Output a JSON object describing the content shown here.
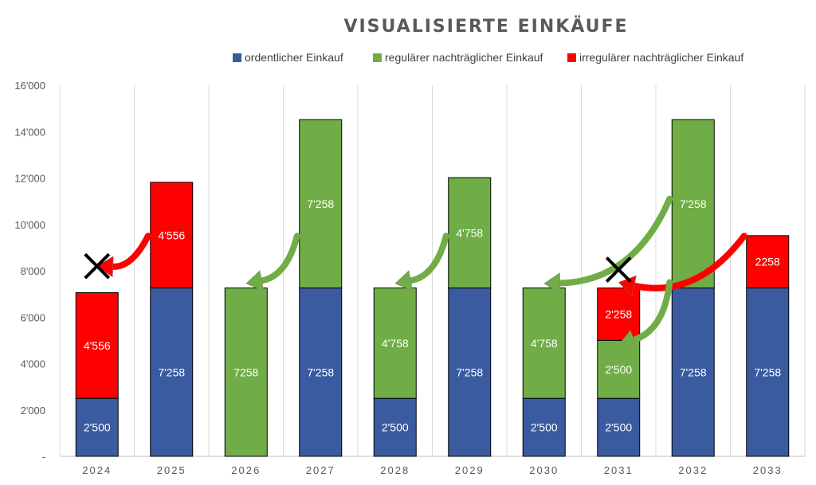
{
  "chart_data": {
    "type": "bar",
    "stacked": true,
    "title": "VISUALISIERTE EINKÄUFE",
    "categories": [
      "2024",
      "2025",
      "2026",
      "2027",
      "2028",
      "2029",
      "2030",
      "2031",
      "2032",
      "2033"
    ],
    "ylim": [
      0,
      16000
    ],
    "y_ticks": [
      "-",
      "2'000",
      "4'000",
      "6'000",
      "8'000",
      "10'000",
      "12'000",
      "14'000",
      "16'000"
    ],
    "grid": "vertical separators",
    "legend_position": "top",
    "series": [
      {
        "name": "ordentlicher Einkauf",
        "color": "#3A5BA0",
        "values": [
          2500,
          7258,
          0,
          7258,
          2500,
          7258,
          2500,
          2500,
          7258,
          7258
        ],
        "labels": [
          "2'500",
          "7'258",
          "",
          "7'258",
          "2'500",
          "7'258",
          "2'500",
          "2'500",
          "7'258",
          "7'258"
        ]
      },
      {
        "name": "regulärer nachträglicher Einkauf",
        "color": "#70AD47",
        "values": [
          0,
          0,
          7258,
          7258,
          4758,
          4758,
          4758,
          2500,
          7258,
          0
        ],
        "labels": [
          "",
          "",
          "7258",
          "7'258",
          "4'758",
          "4'758",
          "4'758",
          "2'500",
          "7'258",
          ""
        ]
      },
      {
        "name": "irregulärer nachträglicher Einkauf",
        "color": "#FF0000",
        "values": [
          4556,
          4556,
          0,
          0,
          0,
          0,
          0,
          2258,
          0,
          2258
        ],
        "labels": [
          "4'556",
          "4'556",
          "",
          "",
          "",
          "",
          "",
          "2'258",
          "",
          "2258"
        ]
      }
    ],
    "annotations": [
      {
        "type": "curved-arrow",
        "color": "#FF0000",
        "from_category": "2025",
        "to_category": "2024",
        "from_value": 9500,
        "to_value": 8200
      },
      {
        "type": "x-mark",
        "category": "2024",
        "value": 8200
      },
      {
        "type": "curved-arrow",
        "color": "#70AD47",
        "from_category": "2027",
        "to_category": "2026",
        "from_value": 9500,
        "to_value": 7450
      },
      {
        "type": "curved-arrow",
        "color": "#70AD47",
        "from_category": "2029",
        "to_category": "2028",
        "from_value": 9500,
        "to_value": 7450
      },
      {
        "type": "curved-arrow",
        "color": "#70AD47",
        "from_category": "2032",
        "to_category": "2030",
        "from_value": 11100,
        "to_value": 7450
      },
      {
        "type": "curved-arrow",
        "color": "#FF0000",
        "from_category": "2033",
        "to_category": "2031",
        "from_value": 9500,
        "to_value": 7500
      },
      {
        "type": "x-mark",
        "category": "2031",
        "value": 8050
      },
      {
        "type": "curved-arrow",
        "color": "#70AD47",
        "from_category": "2032",
        "to_category": "2031",
        "from_value": 7500,
        "to_value": 4800
      }
    ]
  }
}
